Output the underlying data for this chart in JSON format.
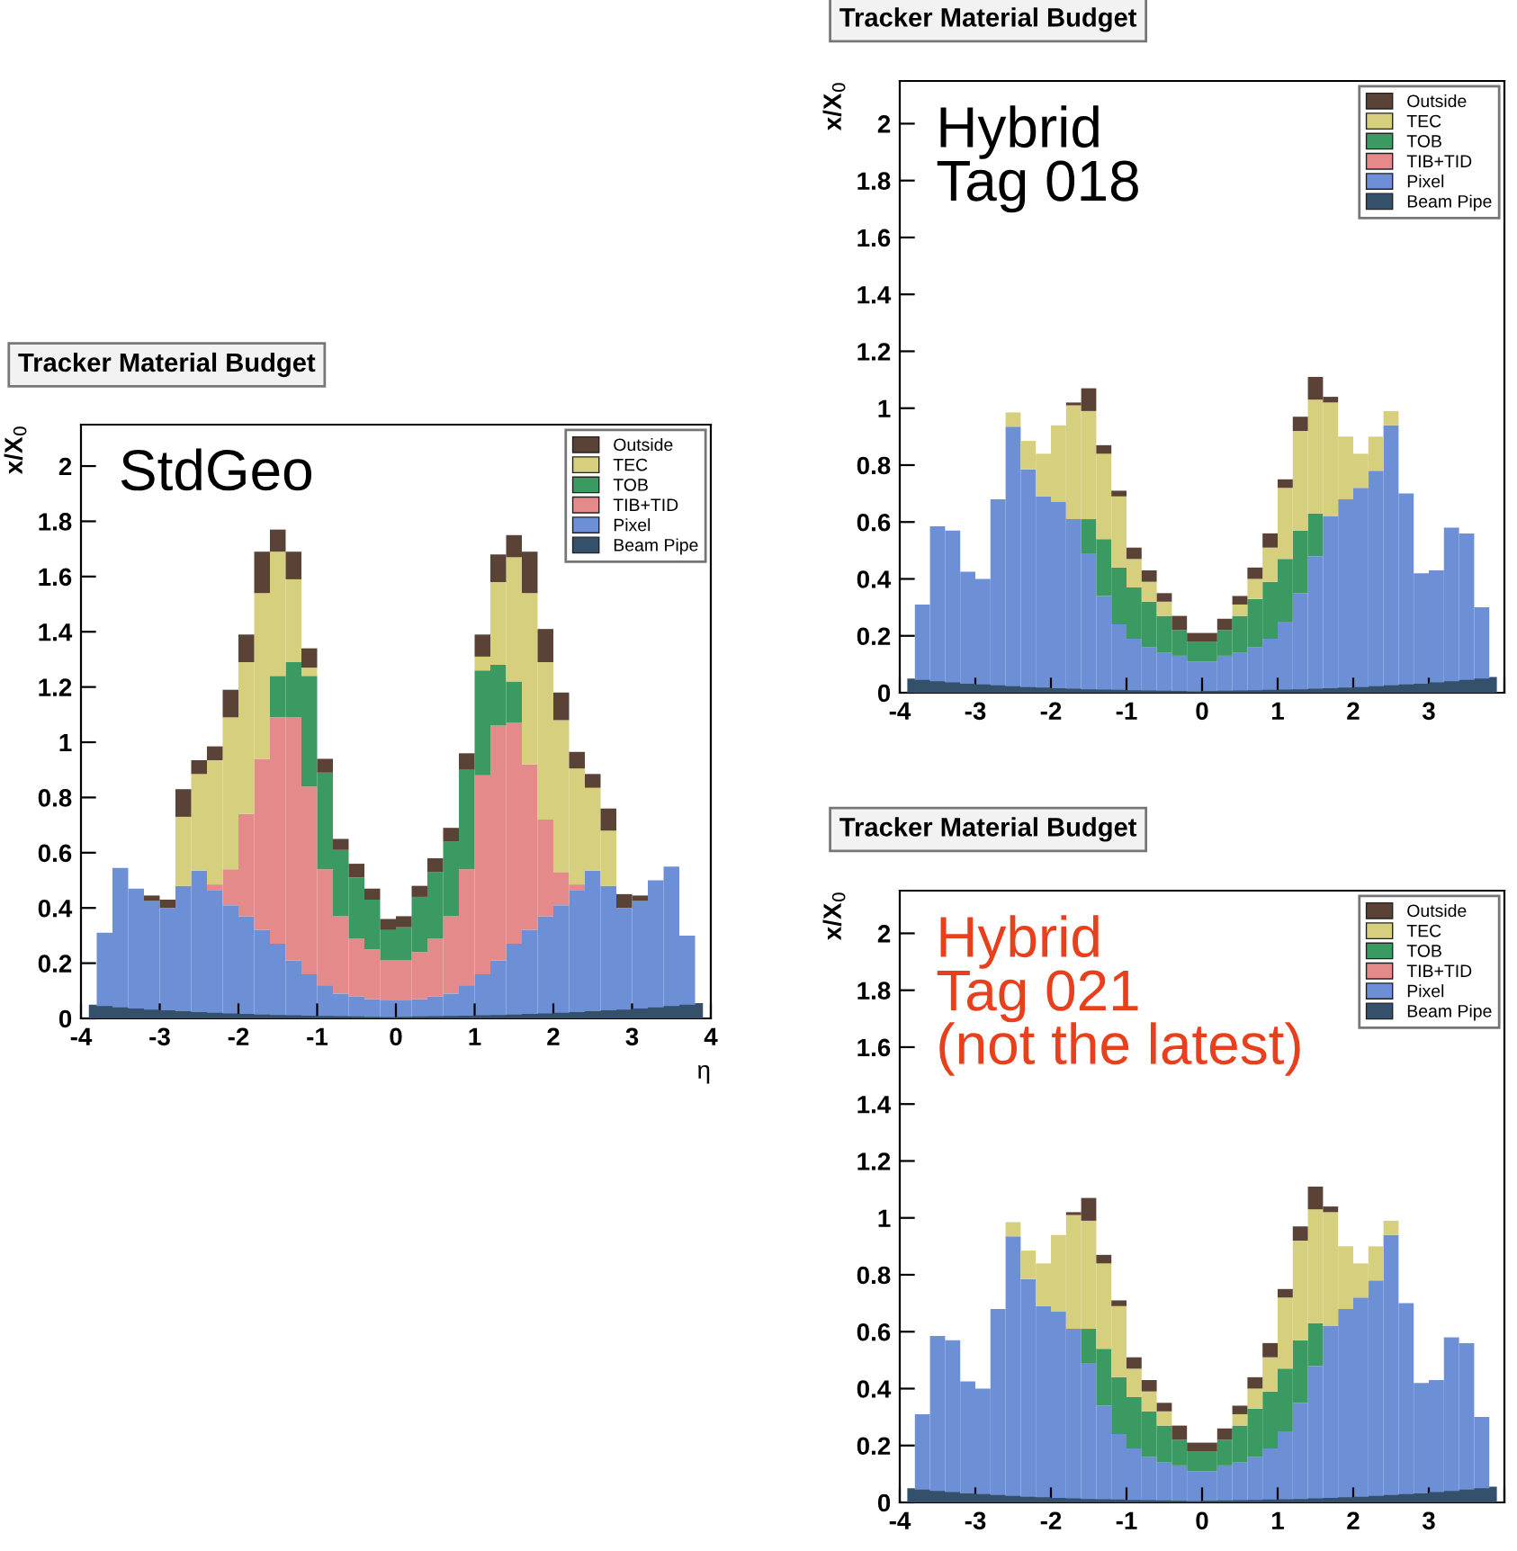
{
  "chart_data": [
    {
      "type": "bar",
      "title": "Tracker Material Budget",
      "xlabel": "η",
      "ylabel": "x/X$_{0}$",
      "stacked": true,
      "legend": "top right",
      "grid": false,
      "annotations": [
        "StdGeo"
      ],
      "x": [
        -3.9,
        -3.7,
        -3.5,
        -3.3,
        -3.1,
        -2.9,
        -2.7,
        -2.5,
        -2.3,
        -2.1,
        -1.9,
        -1.7,
        -1.5,
        -1.3,
        -1.1,
        -0.9,
        -0.7,
        -0.5,
        -0.3,
        -0.1,
        0.1,
        0.3,
        0.5,
        0.7,
        0.9,
        1.1,
        1.3,
        1.5,
        1.7,
        1.9,
        2.1,
        2.3,
        2.5,
        2.7,
        2.9,
        3.1,
        3.3,
        3.5,
        3.7,
        3.9
      ],
      "xlim": [
        -4,
        4
      ],
      "xticks": [
        -4,
        -3,
        -2,
        -1,
        0,
        1,
        2,
        3,
        4
      ],
      "ylim": [
        0,
        2.15
      ],
      "yticks": [
        0,
        0.2,
        0.4,
        0.6,
        0.8,
        1,
        1.2,
        1.4,
        1.6,
        1.8,
        2
      ],
      "series": [
        {
          "name": "Beam Pipe",
          "type": "area",
          "color": "#34506a",
          "values": [
            0.05,
            0.045,
            0.04,
            0.036,
            0.032,
            0.029,
            0.026,
            0.023,
            0.02,
            0.018,
            0.016,
            0.014,
            0.012,
            0.011,
            0.01,
            0.009,
            0.008,
            0.007,
            0.006,
            0.005,
            0.006,
            0.007,
            0.008,
            0.009,
            0.01,
            0.011,
            0.012,
            0.014,
            0.016,
            0.018,
            0.02,
            0.023,
            0.026,
            0.029,
            0.032,
            0.036,
            0.04,
            0.045,
            0.05,
            0.055
          ]
        },
        {
          "name": "Pixel",
          "color": "#6d8fd6",
          "values": [
            0,
            0.31,
            0.545,
            0.47,
            0.425,
            0.4,
            0.48,
            0.535,
            0.465,
            0.41,
            0.37,
            0.32,
            0.27,
            0.21,
            0.16,
            0.12,
            0.09,
            0.08,
            0.07,
            0.065,
            0.065,
            0.07,
            0.08,
            0.09,
            0.12,
            0.16,
            0.21,
            0.27,
            0.32,
            0.37,
            0.41,
            0.465,
            0.535,
            0.48,
            0.4,
            0.425,
            0.5,
            0.55,
            0.3,
            0
          ]
        },
        {
          "name": "TIB+TID",
          "color": "#e48a8a",
          "values": [
            0,
            0,
            0,
            0,
            0,
            0,
            0,
            0,
            0.02,
            0.13,
            0.37,
            0.62,
            0.82,
            0.88,
            0.68,
            0.42,
            0.28,
            0.21,
            0.18,
            0.145,
            0.145,
            0.17,
            0.21,
            0.28,
            0.42,
            0.72,
            0.85,
            0.8,
            0.6,
            0.35,
            0.12,
            0.02,
            0,
            0,
            0,
            0,
            0,
            0,
            0,
            0
          ]
        },
        {
          "name": "TOB",
          "color": "#3a9a62",
          "values": [
            0,
            0,
            0,
            0,
            0,
            0,
            0,
            0,
            0,
            0,
            0,
            0,
            0.15,
            0.2,
            0.4,
            0.35,
            0.24,
            0.22,
            0.18,
            0.11,
            0.12,
            0.2,
            0.24,
            0.27,
            0.36,
            0.38,
            0.22,
            0.15,
            0,
            0,
            0,
            0,
            0,
            0,
            0,
            0,
            0,
            0,
            0,
            0
          ]
        },
        {
          "name": "TEC",
          "color": "#d6cf7e",
          "values": [
            0,
            0,
            0,
            0,
            0,
            0,
            0.25,
            0.35,
            0.45,
            0.55,
            0.55,
            0.6,
            0.45,
            0.3,
            0.03,
            0,
            0,
            0,
            0,
            0,
            0,
            0,
            0,
            0,
            0,
            0.05,
            0.3,
            0.45,
            0.62,
            0.57,
            0.55,
            0.42,
            0.3,
            0.2,
            0,
            0,
            0,
            0,
            0,
            0
          ]
        },
        {
          "name": "Outside",
          "color": "#5b4236",
          "values": [
            0,
            0,
            0,
            0,
            0.02,
            0.03,
            0.1,
            0.05,
            0.05,
            0.1,
            0.1,
            0.15,
            0.08,
            0.1,
            0.07,
            0.05,
            0.04,
            0.05,
            0.04,
            0.04,
            0.04,
            0.04,
            0.05,
            0.05,
            0.06,
            0.08,
            0.1,
            0.08,
            0.15,
            0.12,
            0.1,
            0.06,
            0.05,
            0.08,
            0.05,
            0.02,
            0,
            0,
            0,
            0
          ]
        }
      ]
    },
    {
      "type": "bar",
      "title": "Tracker Material Budget",
      "ylabel": "x/X$_{0}$",
      "stacked": true,
      "legend": "top right",
      "grid": false,
      "annotations": [
        "Hybrid\nTag 018"
      ],
      "x": [
        -3.9,
        -3.7,
        -3.5,
        -3.3,
        -3.1,
        -2.9,
        -2.7,
        -2.5,
        -2.3,
        -2.1,
        -1.9,
        -1.7,
        -1.5,
        -1.3,
        -1.1,
        -0.9,
        -0.7,
        -0.5,
        -0.3,
        -0.1,
        0.1,
        0.3,
        0.5,
        0.7,
        0.9,
        1.1,
        1.3,
        1.5,
        1.7,
        1.9,
        2.1,
        2.3,
        2.5,
        2.7,
        2.9,
        3.1,
        3.3,
        3.5,
        3.7,
        3.9
      ],
      "xlim": [
        -4,
        4
      ],
      "xticks": [
        -4,
        -3,
        -2,
        -1,
        0,
        1,
        2,
        3,
        {
          "value": 4,
          "label": null
        }
      ],
      "ylim": [
        0,
        2.15
      ],
      "yticks": [
        0,
        0.2,
        0.4,
        0.6,
        0.8,
        1,
        1.2,
        1.4,
        1.6,
        1.8,
        2
      ],
      "series": [
        {
          "name": "Beam Pipe",
          "type": "area",
          "color": "#34506a",
          "values": [
            0.05,
            0.045,
            0.04,
            0.036,
            0.032,
            0.029,
            0.026,
            0.023,
            0.02,
            0.018,
            0.016,
            0.014,
            0.012,
            0.011,
            0.01,
            0.009,
            0.008,
            0.007,
            0.006,
            0.005,
            0.006,
            0.007,
            0.008,
            0.009,
            0.01,
            0.011,
            0.012,
            0.014,
            0.016,
            0.018,
            0.02,
            0.023,
            0.026,
            0.029,
            0.032,
            0.036,
            0.04,
            0.045,
            0.05,
            0.055
          ]
        },
        {
          "name": "Pixel",
          "color": "#6d8fd6",
          "values": [
            0,
            0.31,
            0.585,
            0.57,
            0.425,
            0.4,
            0.68,
            0.935,
            0.785,
            0.69,
            0.67,
            0.61,
            0.49,
            0.34,
            0.24,
            0.19,
            0.16,
            0.14,
            0.13,
            0.11,
            0.11,
            0.13,
            0.14,
            0.16,
            0.19,
            0.25,
            0.35,
            0.48,
            0.62,
            0.68,
            0.72,
            0.78,
            0.94,
            0.7,
            0.42,
            0.43,
            0.58,
            0.56,
            0.3,
            0
          ]
        },
        {
          "name": "TIB+TID",
          "color": "#e48a8a",
          "values": [
            0,
            0,
            0,
            0,
            0,
            0,
            0,
            0,
            0,
            0,
            0,
            0,
            0,
            0,
            0,
            0,
            0,
            0,
            0,
            0,
            0,
            0,
            0,
            0,
            0,
            0,
            0,
            0,
            0,
            0,
            0,
            0,
            0,
            0,
            0,
            0,
            0,
            0,
            0,
            0
          ]
        },
        {
          "name": "TOB",
          "color": "#3a9a62",
          "values": [
            0,
            0,
            0,
            0,
            0,
            0,
            0,
            0,
            0,
            0,
            0,
            0,
            0.12,
            0.2,
            0.2,
            0.18,
            0.16,
            0.13,
            0.09,
            0.07,
            0.07,
            0.09,
            0.13,
            0.17,
            0.2,
            0.22,
            0.22,
            0.15,
            0,
            0,
            0,
            0,
            0,
            0,
            0,
            0,
            0,
            0,
            0,
            0
          ]
        },
        {
          "name": "TEC",
          "color": "#d6cf7e",
          "values": [
            0,
            0,
            0,
            0,
            0,
            0,
            0,
            0.05,
            0.1,
            0.15,
            0.27,
            0.4,
            0.38,
            0.3,
            0.25,
            0.1,
            0.07,
            0.05,
            0,
            0,
            0,
            0,
            0.04,
            0.07,
            0.12,
            0.25,
            0.35,
            0.4,
            0.4,
            0.22,
            0.12,
            0.12,
            0.05,
            0,
            0,
            0,
            0,
            0,
            0,
            0
          ]
        },
        {
          "name": "Outside",
          "color": "#5b4236",
          "values": [
            0,
            0,
            0,
            0,
            0,
            0,
            0,
            0,
            0,
            0,
            0,
            0.01,
            0.08,
            0.03,
            0.02,
            0.04,
            0.04,
            0.03,
            0.05,
            0.03,
            0.03,
            0.04,
            0.03,
            0.04,
            0.05,
            0.03,
            0.05,
            0.08,
            0.02,
            0,
            0,
            0,
            0,
            0,
            0,
            0,
            0,
            0,
            0,
            0
          ]
        }
      ]
    },
    {
      "type": "bar",
      "title": "Tracker Material Budget",
      "ylabel": "x/X$_{0}$",
      "stacked": true,
      "legend": "top right",
      "grid": false,
      "annotations": [
        "Hybrid\nTag 021\n(not the latest)"
      ],
      "x": [
        -3.9,
        -3.7,
        -3.5,
        -3.3,
        -3.1,
        -2.9,
        -2.7,
        -2.5,
        -2.3,
        -2.1,
        -1.9,
        -1.7,
        -1.5,
        -1.3,
        -1.1,
        -0.9,
        -0.7,
        -0.5,
        -0.3,
        -0.1,
        0.1,
        0.3,
        0.5,
        0.7,
        0.9,
        1.1,
        1.3,
        1.5,
        1.7,
        1.9,
        2.1,
        2.3,
        2.5,
        2.7,
        2.9,
        3.1,
        3.3,
        3.5,
        3.7,
        3.9
      ],
      "xlim": [
        -4,
        4
      ],
      "xticks": [
        -4,
        -3,
        -2,
        -1,
        0,
        1,
        2,
        3,
        {
          "value": 4,
          "label": null
        }
      ],
      "ylim": [
        0,
        2.15
      ],
      "yticks": [
        0,
        0.2,
        0.4,
        0.6,
        0.8,
        1,
        1.2,
        1.4,
        1.6,
        1.8,
        2
      ],
      "series": [
        {
          "name": "Beam Pipe",
          "type": "area",
          "color": "#34506a",
          "values": [
            0.05,
            0.045,
            0.04,
            0.036,
            0.032,
            0.029,
            0.026,
            0.023,
            0.02,
            0.018,
            0.016,
            0.014,
            0.012,
            0.011,
            0.01,
            0.009,
            0.008,
            0.007,
            0.006,
            0.005,
            0.006,
            0.007,
            0.008,
            0.009,
            0.01,
            0.011,
            0.012,
            0.014,
            0.016,
            0.018,
            0.02,
            0.023,
            0.026,
            0.029,
            0.032,
            0.036,
            0.04,
            0.045,
            0.05,
            0.055
          ]
        },
        {
          "name": "Pixel",
          "color": "#6d8fd6",
          "values": [
            0,
            0.31,
            0.585,
            0.57,
            0.425,
            0.4,
            0.68,
            0.935,
            0.785,
            0.69,
            0.67,
            0.61,
            0.49,
            0.34,
            0.24,
            0.19,
            0.16,
            0.14,
            0.13,
            0.11,
            0.11,
            0.13,
            0.14,
            0.16,
            0.19,
            0.25,
            0.35,
            0.48,
            0.62,
            0.68,
            0.72,
            0.78,
            0.94,
            0.7,
            0.42,
            0.43,
            0.58,
            0.56,
            0.3,
            0
          ]
        },
        {
          "name": "TIB+TID",
          "color": "#e48a8a",
          "values": [
            0,
            0,
            0,
            0,
            0,
            0,
            0,
            0,
            0,
            0,
            0,
            0,
            0,
            0,
            0,
            0,
            0,
            0,
            0,
            0,
            0,
            0,
            0,
            0,
            0,
            0,
            0,
            0,
            0,
            0,
            0,
            0,
            0,
            0,
            0,
            0,
            0,
            0,
            0,
            0
          ]
        },
        {
          "name": "TOB",
          "color": "#3a9a62",
          "values": [
            0,
            0,
            0,
            0,
            0,
            0,
            0,
            0,
            0,
            0,
            0,
            0,
            0.12,
            0.2,
            0.2,
            0.18,
            0.16,
            0.13,
            0.09,
            0.07,
            0.07,
            0.09,
            0.13,
            0.17,
            0.2,
            0.22,
            0.22,
            0.15,
            0,
            0,
            0,
            0,
            0,
            0,
            0,
            0,
            0,
            0,
            0,
            0
          ]
        },
        {
          "name": "TEC",
          "color": "#d6cf7e",
          "values": [
            0,
            0,
            0,
            0,
            0,
            0,
            0,
            0.05,
            0.1,
            0.15,
            0.27,
            0.4,
            0.38,
            0.3,
            0.25,
            0.1,
            0.07,
            0.05,
            0,
            0,
            0,
            0,
            0.04,
            0.07,
            0.12,
            0.25,
            0.35,
            0.4,
            0.4,
            0.22,
            0.12,
            0.12,
            0.05,
            0,
            0,
            0,
            0,
            0,
            0,
            0
          ]
        },
        {
          "name": "Outside",
          "color": "#5b4236",
          "values": [
            0,
            0,
            0,
            0,
            0,
            0,
            0,
            0,
            0,
            0,
            0,
            0.01,
            0.08,
            0.03,
            0.02,
            0.04,
            0.04,
            0.03,
            0.05,
            0.03,
            0.03,
            0.04,
            0.03,
            0.04,
            0.05,
            0.03,
            0.05,
            0.08,
            0.02,
            0,
            0,
            0,
            0,
            0,
            0,
            0,
            0,
            0,
            0,
            0
          ]
        }
      ]
    }
  ]
}
